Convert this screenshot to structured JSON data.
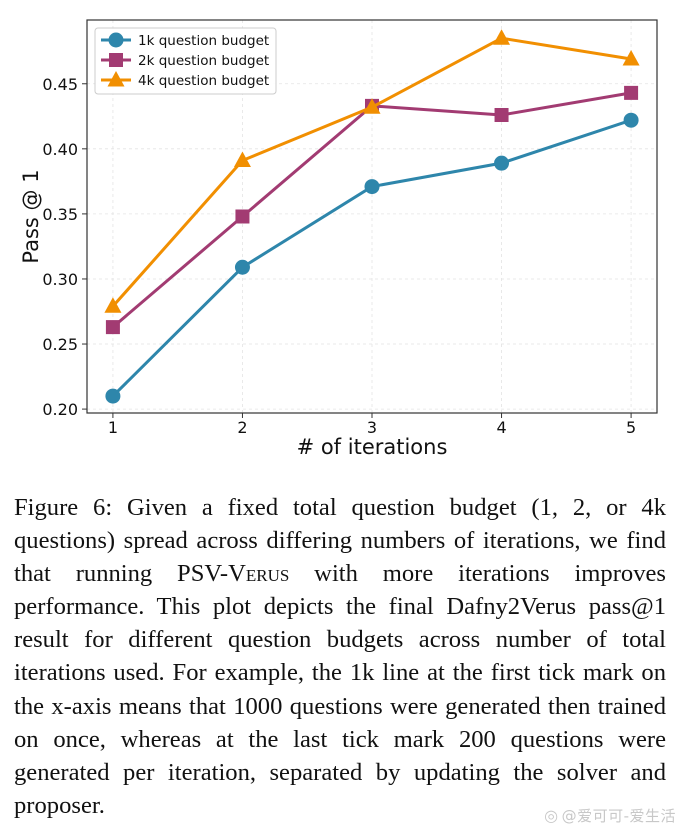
{
  "chart_data": {
    "type": "line",
    "title": "",
    "xlabel": "# of iterations",
    "ylabel": "Pass @ 1",
    "x": [
      1,
      2,
      3,
      4,
      5
    ],
    "xticks": [
      "1",
      "2",
      "3",
      "4",
      "5"
    ],
    "xlim": [
      0.8,
      5.2
    ],
    "yticks": [
      "0.20",
      "0.25",
      "0.30",
      "0.35",
      "0.40",
      "0.45"
    ],
    "ytick_values": [
      0.2,
      0.25,
      0.3,
      0.35,
      0.4,
      0.45
    ],
    "ylim": [
      0.197,
      0.499
    ],
    "grid": true,
    "legend_position": "top-left",
    "series": [
      {
        "name": "1k question budget",
        "marker": "circle",
        "color": "#2e86ab",
        "values": [
          0.21,
          0.309,
          0.371,
          0.389,
          0.422
        ]
      },
      {
        "name": "2k question budget",
        "marker": "square",
        "color": "#a23b72",
        "values": [
          0.263,
          0.348,
          0.433,
          0.426,
          0.443
        ]
      },
      {
        "name": "4k question budget",
        "marker": "triangle",
        "color": "#f18f01",
        "values": [
          0.279,
          0.391,
          0.432,
          0.485,
          0.469
        ]
      }
    ]
  },
  "caption": {
    "label": "Figure 6:",
    "part1": " Given a fixed total question budget (1, 2, or 4k questions) spread across differing numbers of iterations, we find that running PSV-",
    "smallcaps_first": "V",
    "smallcaps_rest": "erus",
    "part2": " with more iterations improves performance. This plot depicts the final Dafny2Verus pass@1 result for different question budgets across number of total iterations used. For example, the 1k line at the first tick mark on the x-axis means that 1000 questions were generated then trained on once, whereas at the last tick mark 200 questions were generated per iteration, separated by updating the solver and proposer."
  },
  "watermark": {
    "icon": "weibo-icon",
    "text": "@爱可可-爱生活"
  }
}
